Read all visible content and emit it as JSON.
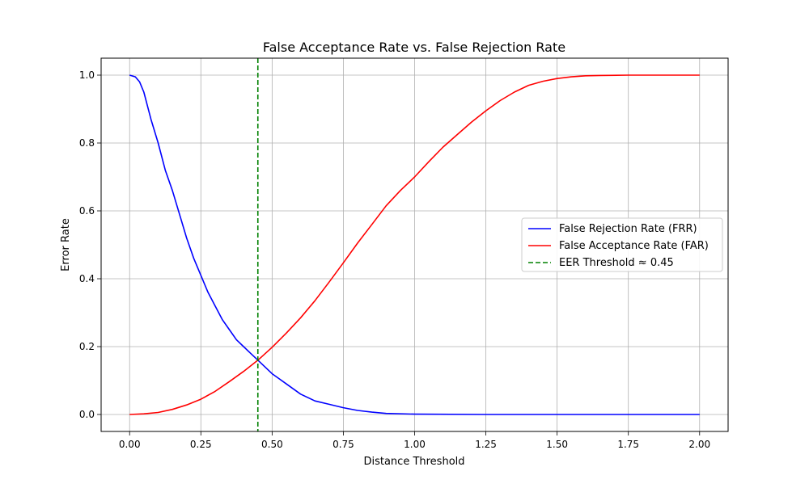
{
  "chart_data": {
    "type": "line",
    "title": "False Acceptance Rate vs. False Rejection Rate",
    "xlabel": "Distance Threshold",
    "ylabel": "Error Rate",
    "xlim": [
      -0.1,
      2.1
    ],
    "ylim": [
      -0.05,
      1.05
    ],
    "xticks": [
      0.0,
      0.25,
      0.5,
      0.75,
      1.0,
      1.25,
      1.5,
      1.75,
      2.0
    ],
    "xtick_labels": [
      "0.00",
      "0.25",
      "0.50",
      "0.75",
      "1.00",
      "1.25",
      "1.50",
      "1.75",
      "2.00"
    ],
    "yticks": [
      0.0,
      0.2,
      0.4,
      0.6,
      0.8,
      1.0
    ],
    "ytick_labels": [
      "0.0",
      "0.2",
      "0.4",
      "0.6",
      "0.8",
      "1.0"
    ],
    "grid": true,
    "legend_position": "center-right",
    "series": [
      {
        "name": "False Rejection Rate (FRR)",
        "color": "#0000ff",
        "x": [
          0.0,
          0.02,
          0.035,
          0.05,
          0.075,
          0.1,
          0.125,
          0.15,
          0.175,
          0.2,
          0.225,
          0.25,
          0.275,
          0.3,
          0.325,
          0.35,
          0.375,
          0.4,
          0.425,
          0.45,
          0.475,
          0.5,
          0.525,
          0.55,
          0.6,
          0.65,
          0.7,
          0.75,
          0.8,
          0.85,
          0.9,
          1.0,
          1.25,
          1.5,
          2.0
        ],
        "y": [
          1.0,
          0.995,
          0.98,
          0.95,
          0.87,
          0.8,
          0.72,
          0.66,
          0.59,
          0.52,
          0.46,
          0.41,
          0.36,
          0.32,
          0.28,
          0.25,
          0.22,
          0.2,
          0.18,
          0.16,
          0.14,
          0.12,
          0.105,
          0.09,
          0.06,
          0.04,
          0.03,
          0.02,
          0.012,
          0.007,
          0.003,
          0.001,
          0.0,
          0.0,
          0.0
        ]
      },
      {
        "name": "False Acceptance Rate (FAR)",
        "color": "#ff0000",
        "x": [
          0.0,
          0.05,
          0.1,
          0.15,
          0.2,
          0.25,
          0.3,
          0.35,
          0.4,
          0.45,
          0.5,
          0.55,
          0.6,
          0.65,
          0.7,
          0.75,
          0.8,
          0.85,
          0.9,
          0.95,
          1.0,
          1.05,
          1.1,
          1.15,
          1.2,
          1.25,
          1.3,
          1.35,
          1.4,
          1.45,
          1.5,
          1.55,
          1.6,
          1.65,
          1.75,
          2.0
        ],
        "y": [
          0.0,
          0.002,
          0.006,
          0.015,
          0.028,
          0.045,
          0.068,
          0.097,
          0.127,
          0.16,
          0.198,
          0.24,
          0.285,
          0.335,
          0.39,
          0.447,
          0.505,
          0.56,
          0.615,
          0.66,
          0.7,
          0.745,
          0.788,
          0.825,
          0.862,
          0.895,
          0.925,
          0.95,
          0.97,
          0.982,
          0.99,
          0.995,
          0.998,
          0.999,
          1.0,
          1.0
        ]
      },
      {
        "name": "EER Threshold ≈ 0.45",
        "color": "#008000",
        "style": "dashed",
        "vertical_x": 0.45
      }
    ]
  }
}
